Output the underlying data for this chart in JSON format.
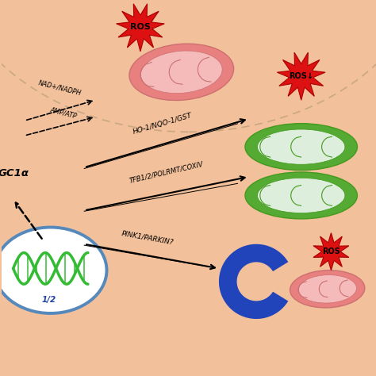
{
  "bg_color": "#F2C09A",
  "cell_border_color": "#C8A882",
  "figsize": [
    4.74,
    4.74
  ],
  "dpi": 100,
  "ros_star_color": "#DD1111",
  "mito_damaged_outer": "#E88080",
  "mito_damaged_inner": "#F5BBBB",
  "mito_damaged_line": "#CC7070",
  "mito_healthy_outer": "#55AA33",
  "mito_healthy_inner": "#DDEEDD",
  "mito_healthy_line": "#44991E",
  "mito_auto_color": "#2244BB",
  "nucleus_outer": "#5588BB",
  "nucleus_inner": "#FFFFFF",
  "dna_color": "#33BB33",
  "nrf_color": "#2244AA",
  "label_pgc1a": "GC1α",
  "label_nrf": "1/2",
  "label_nad": "NAD+/NADPH",
  "label_amp": "AMP/ATP",
  "label_ho1": "HO-1/NQO-1/GST",
  "label_tfb": "TFB1/2/POLRMT/COXIV",
  "label_pink": "PINK1/PARKIN?",
  "label_ros": "ROS",
  "label_ros_down": "ROS↓",
  "arrow_color": "#111111"
}
